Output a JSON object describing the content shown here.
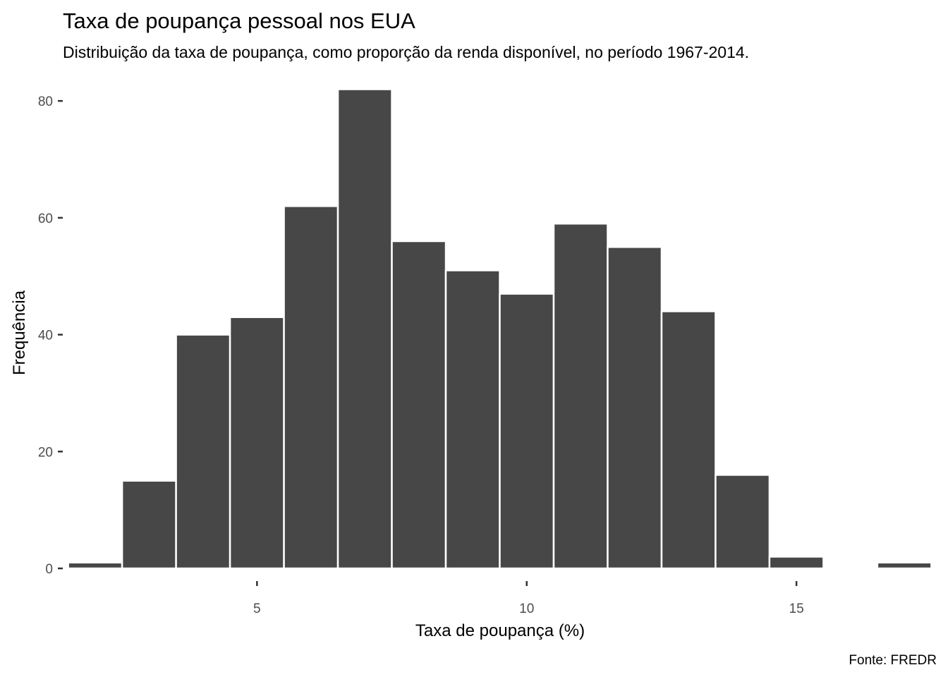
{
  "chart_data": {
    "type": "bar",
    "title": "Taxa de poupança pessoal nos EUA",
    "subtitle": "Distribuição da taxa de poupança, como proporção da renda disponível, no período 1967-2014.",
    "xlabel": "Taxa de poupança (%)",
    "ylabel": "Frequência",
    "caption": "Fonte: FREDR",
    "bar_color": "#474747",
    "bar_outline_color": "#ffffff",
    "grid": false,
    "legend": "none",
    "xlim": [
      1.4,
      17.6
    ],
    "ylim": [
      0,
      84
    ],
    "x_ticks": [
      5,
      10,
      15
    ],
    "y_ticks": [
      0,
      20,
      40,
      60,
      80
    ],
    "bins": [
      {
        "start": 1.5,
        "end": 2.5,
        "value": 1
      },
      {
        "start": 2.5,
        "end": 3.5,
        "value": 15
      },
      {
        "start": 3.5,
        "end": 4.5,
        "value": 40
      },
      {
        "start": 4.5,
        "end": 5.5,
        "value": 43
      },
      {
        "start": 5.5,
        "end": 6.5,
        "value": 62
      },
      {
        "start": 6.5,
        "end": 7.5,
        "value": 82
      },
      {
        "start": 7.5,
        "end": 8.5,
        "value": 56
      },
      {
        "start": 8.5,
        "end": 9.5,
        "value": 51
      },
      {
        "start": 9.5,
        "end": 10.5,
        "value": 47
      },
      {
        "start": 10.5,
        "end": 11.5,
        "value": 59
      },
      {
        "start": 11.5,
        "end": 12.5,
        "value": 55
      },
      {
        "start": 12.5,
        "end": 13.5,
        "value": 44
      },
      {
        "start": 13.5,
        "end": 14.5,
        "value": 16
      },
      {
        "start": 14.5,
        "end": 15.5,
        "value": 2
      },
      {
        "start": 15.5,
        "end": 16.5,
        "value": 0
      },
      {
        "start": 16.5,
        "end": 17.5,
        "value": 1
      }
    ]
  }
}
